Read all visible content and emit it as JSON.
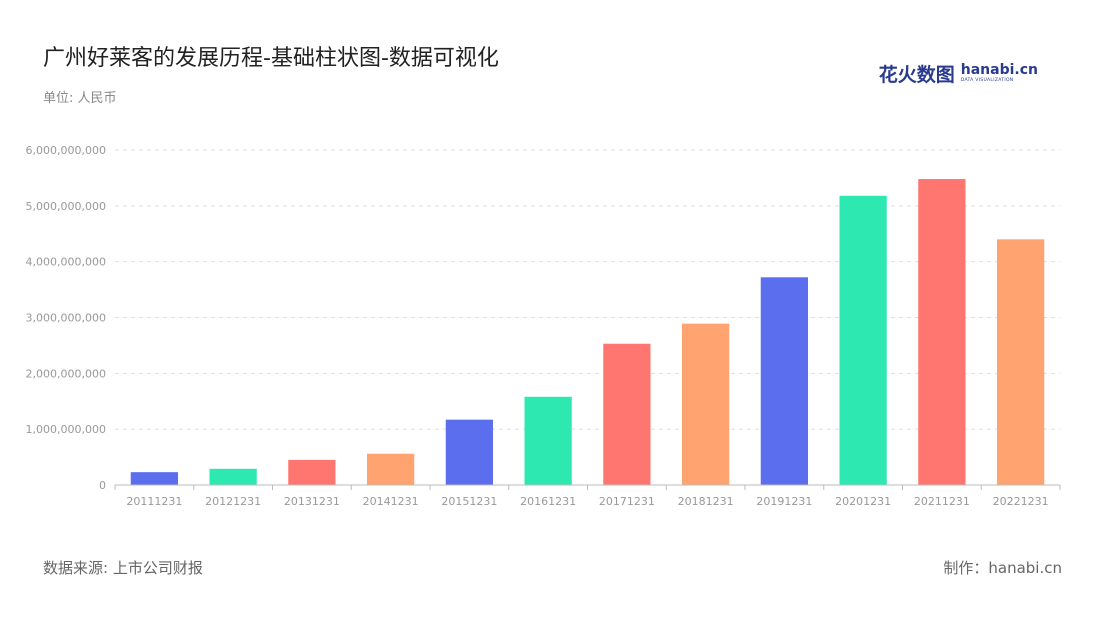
{
  "header": {
    "title": "广州好莱客的发展历程-基础柱状图-数据可视化",
    "unit": "单位: 人民币"
  },
  "logo": {
    "cn": "花火数图",
    "en_main": "hanabi.cn",
    "en_sub": "DATA VISUALIZATION"
  },
  "footer": {
    "source": "数据来源: 上市公司财报",
    "credit": "制作：hanabi.cn"
  },
  "colors": {
    "blue": "#5b6fee",
    "green": "#2ee8b1",
    "red": "#ff7670",
    "orange": "#ffa470",
    "grid": "#dddddd",
    "axis": "#bbbbbb"
  },
  "chart_data": {
    "type": "bar",
    "categories": [
      "20111231",
      "20121231",
      "20131231",
      "20141231",
      "20151231",
      "20161231",
      "20171231",
      "20181231",
      "20191231",
      "20201231",
      "20211231",
      "20221231"
    ],
    "values": [
      230000000,
      290000000,
      450000000,
      560000000,
      1170000000,
      1580000000,
      2530000000,
      2890000000,
      3720000000,
      5180000000,
      5480000000,
      4400000000
    ],
    "bar_colors": [
      "blue",
      "green",
      "red",
      "orange",
      "blue",
      "green",
      "red",
      "orange",
      "blue",
      "green",
      "red",
      "orange"
    ],
    "yticks": [
      "0",
      "1,000,000,000",
      "2,000,000,000",
      "3,000,000,000",
      "4,000,000,000",
      "5,000,000,000",
      "6,000,000,000"
    ],
    "ylim": [
      0,
      6000000000
    ],
    "grid": true,
    "legend": false
  }
}
